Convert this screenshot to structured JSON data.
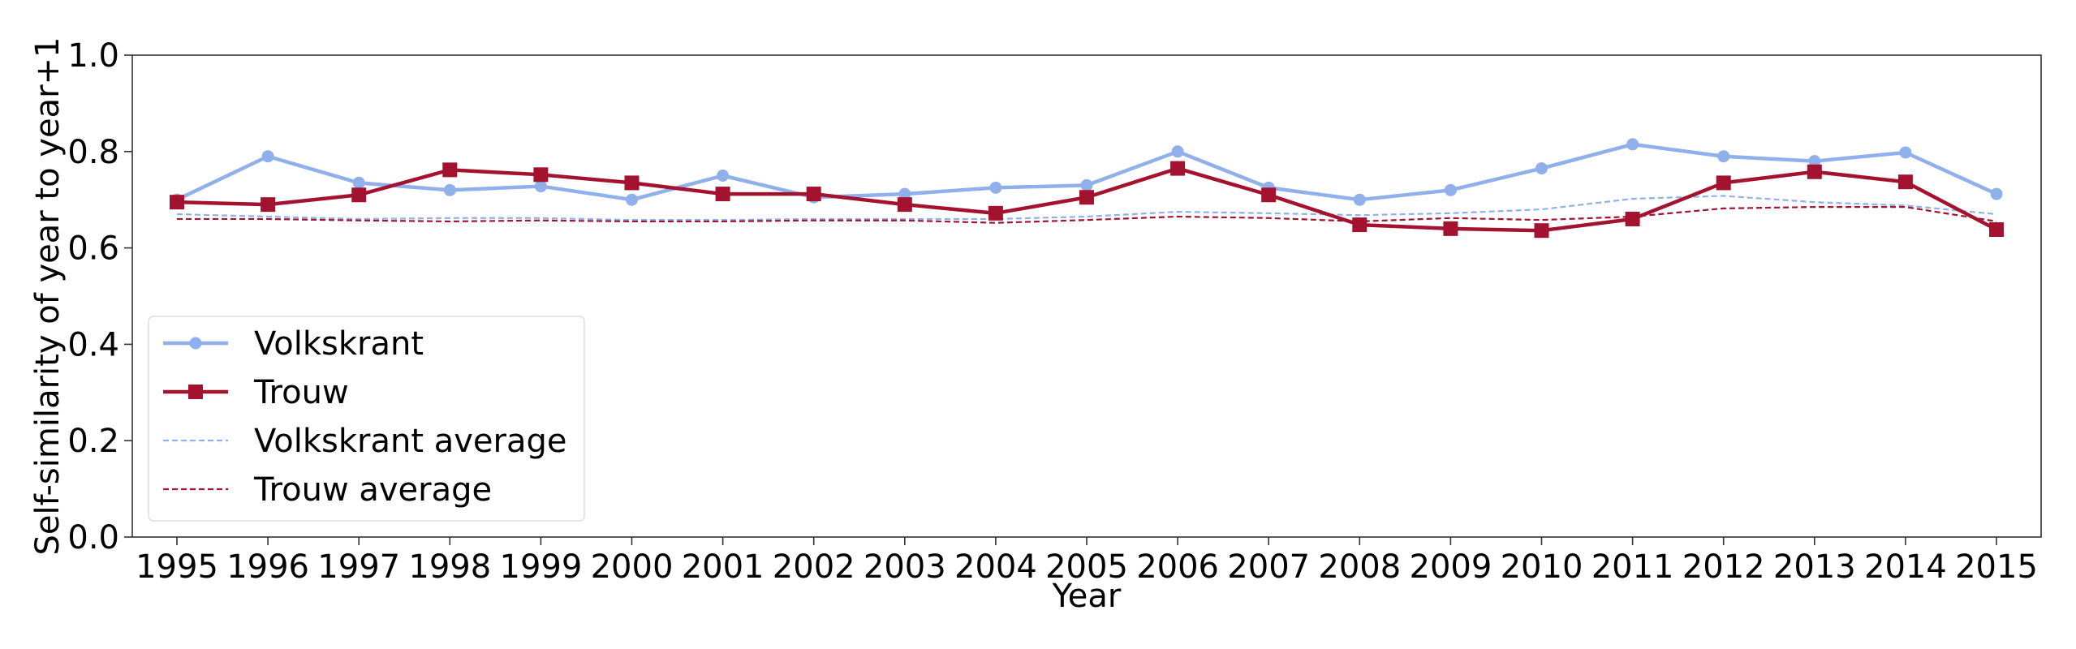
{
  "chart_data": {
    "type": "line",
    "title": "",
    "xlabel": "Year",
    "ylabel": "Self-similarity of year to year+1",
    "x": [
      1995,
      1996,
      1997,
      1998,
      1999,
      2000,
      2001,
      2002,
      2003,
      2004,
      2005,
      2006,
      2007,
      2008,
      2009,
      2010,
      2011,
      2012,
      2013,
      2014,
      2015
    ],
    "ylim": [
      0.0,
      1.0
    ],
    "yticks": [
      "0.0",
      "0.2",
      "0.4",
      "0.6",
      "0.8",
      "1.0"
    ],
    "grid": false,
    "legend_position": "lower-left",
    "series": [
      {
        "name": "Volkskrant",
        "color": "#8fb0ea",
        "style": "solid",
        "marker": "circle",
        "values": [
          0.7,
          0.79,
          0.735,
          0.72,
          0.728,
          0.7,
          0.75,
          0.705,
          0.712,
          0.725,
          0.73,
          0.8,
          0.725,
          0.7,
          0.72,
          0.765,
          0.815,
          0.79,
          0.78,
          0.798,
          0.712
        ]
      },
      {
        "name": "Trouw",
        "color": "#a3122f",
        "style": "solid",
        "marker": "square",
        "values": [
          0.695,
          0.69,
          0.71,
          0.762,
          0.752,
          0.735,
          0.712,
          0.712,
          0.69,
          0.672,
          0.705,
          0.765,
          0.71,
          0.648,
          0.64,
          0.636,
          0.66,
          0.735,
          0.758,
          0.737,
          0.638
        ]
      },
      {
        "name": "Volkskrant average",
        "color": "#8fb0ea",
        "style": "dashed",
        "marker": "none",
        "values": [
          0.67,
          0.665,
          0.66,
          0.662,
          0.662,
          0.658,
          0.658,
          0.66,
          0.66,
          0.66,
          0.665,
          0.675,
          0.672,
          0.668,
          0.672,
          0.68,
          0.702,
          0.708,
          0.695,
          0.688,
          0.67
        ]
      },
      {
        "name": "Trouw average",
        "color": "#a3122f",
        "style": "dashed",
        "marker": "none",
        "values": [
          0.66,
          0.66,
          0.657,
          0.655,
          0.657,
          0.655,
          0.655,
          0.657,
          0.657,
          0.652,
          0.658,
          0.665,
          0.662,
          0.655,
          0.662,
          0.658,
          0.665,
          0.682,
          0.685,
          0.685,
          0.655
        ]
      }
    ]
  }
}
